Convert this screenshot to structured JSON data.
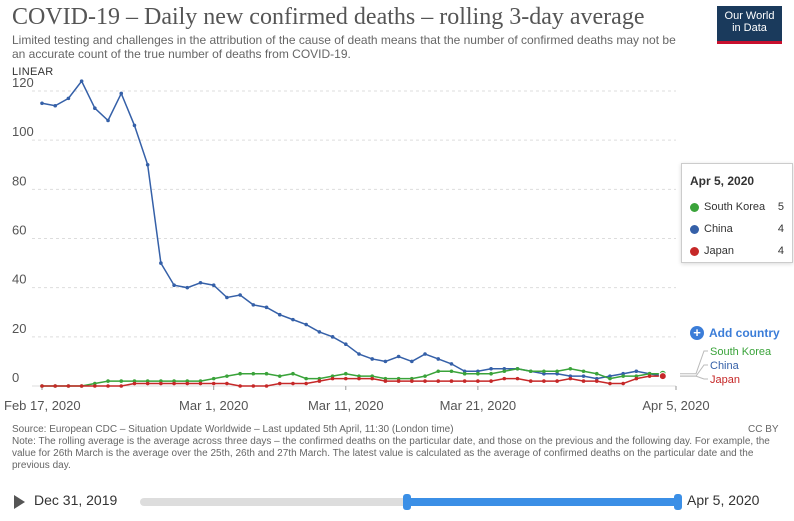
{
  "title": "COVID-19 – Daily new confirmed deaths – rolling 3-day average",
  "subtitle": "Limited testing and challenges in the attribution of the cause of death means that the number of confirmed deaths may not be an accurate count of the true number of deaths from COVID-19.",
  "logo": {
    "line1": "Our World",
    "line2": "in Data"
  },
  "scale_label": "LINEAR",
  "tooltip": {
    "date": "Apr 5, 2020",
    "rows": [
      {
        "name": "South Korea",
        "value": "5",
        "color": "#3aa33a"
      },
      {
        "name": "China",
        "value": "4",
        "color": "#3560a8"
      },
      {
        "name": "Japan",
        "value": "4",
        "color": "#c62828"
      }
    ]
  },
  "add_country": "Add country",
  "source": "Source: European CDC – Situation Update Worldwide – Last updated 5th April, 11:30 (London time)",
  "note": "Note: The rolling average is the average across three days – the confirmed deaths on the particular date, and those on the previous and the following day. For example, the value for 26th March is the average over the 25th, 26th and 27th March. The latest value is calculated as the average of confirmed deaths on the particular date and the previous day.",
  "license": "CC BY",
  "timeline": {
    "start": "Dec 31, 2019",
    "end": "Apr 5, 2020",
    "range_start_fraction": 0.49,
    "range_end_fraction": 1.0
  },
  "chart_data": {
    "type": "line",
    "title": "COVID-19 – Daily new confirmed deaths – rolling 3-day average",
    "ylim": [
      0,
      120
    ],
    "yticks": [
      0,
      20,
      40,
      60,
      80,
      100,
      120
    ],
    "xrange": [
      "2020-02-17",
      "2020-04-05"
    ],
    "xticks": [
      {
        "date": "2020-02-17",
        "label": "Feb 17, 2020"
      },
      {
        "date": "2020-03-01",
        "label": "Mar 1, 2020"
      },
      {
        "date": "2020-03-11",
        "label": "Mar 11, 2020"
      },
      {
        "date": "2020-03-21",
        "label": "Mar 21, 2020"
      },
      {
        "date": "2020-04-05",
        "label": "Apr 5, 2020"
      }
    ],
    "grid": true,
    "x_start_date": "2020-02-17",
    "series": [
      {
        "name": "China",
        "color": "#3560a8",
        "values": [
          115,
          114,
          117,
          124,
          113,
          108,
          119,
          106,
          90,
          50,
          41,
          40,
          42,
          41,
          36,
          37,
          33,
          32,
          29,
          27,
          25,
          22,
          20,
          17,
          13,
          11,
          10,
          12,
          10,
          13,
          11,
          9,
          6,
          6,
          7,
          7,
          7,
          6,
          5,
          5,
          4,
          4,
          3,
          4,
          5,
          6,
          5,
          4
        ]
      },
      {
        "name": "South Korea",
        "color": "#3aa33a",
        "values": [
          0,
          0,
          0,
          0,
          1,
          2,
          2,
          2,
          2,
          2,
          2,
          2,
          2,
          3,
          4,
          5,
          5,
          5,
          4,
          5,
          3,
          3,
          4,
          5,
          4,
          4,
          3,
          3,
          3,
          4,
          6,
          6,
          5,
          5,
          5,
          6,
          7,
          6,
          6,
          6,
          7,
          6,
          5,
          3,
          4,
          4,
          5,
          5
        ]
      },
      {
        "name": "Japan",
        "color": "#c62828",
        "values": [
          0,
          0,
          0,
          0,
          0,
          0,
          0,
          1,
          1,
          1,
          1,
          1,
          1,
          1,
          1,
          0,
          0,
          0,
          1,
          1,
          1,
          2,
          3,
          3,
          3,
          3,
          2,
          2,
          2,
          2,
          2,
          2,
          2,
          2,
          2,
          3,
          3,
          2,
          2,
          2,
          3,
          2,
          2,
          1,
          1,
          3,
          4,
          4
        ]
      }
    ],
    "end_labels": [
      {
        "name": "South Korea",
        "color": "#3aa33a"
      },
      {
        "name": "China",
        "color": "#3560a8"
      },
      {
        "name": "Japan",
        "color": "#c62828"
      }
    ]
  }
}
